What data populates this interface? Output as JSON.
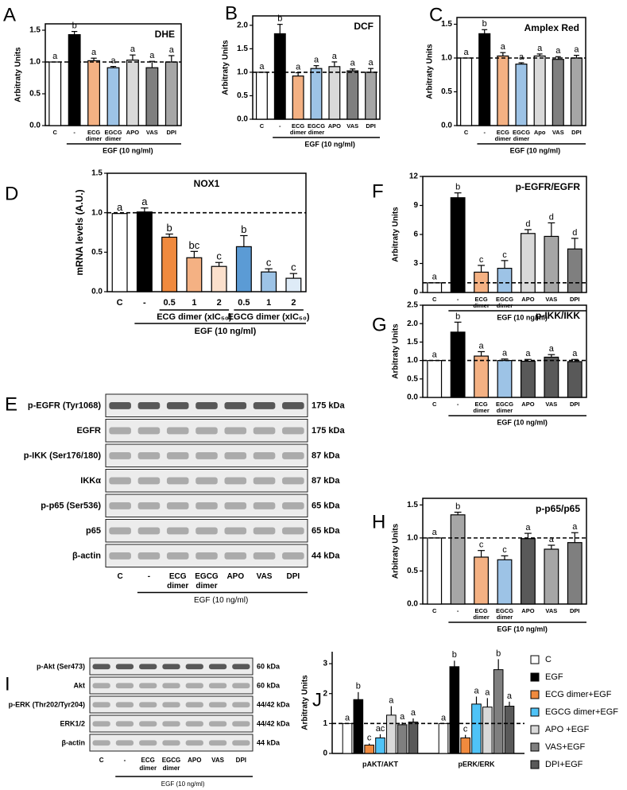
{
  "chart_data": [
    {
      "type": "bar",
      "panel": "A",
      "title": "DHE",
      "ylabel": "Arbitraty Units",
      "categories": [
        [
          "C"
        ],
        [
          "-"
        ],
        [
          "ECG",
          "dimer"
        ],
        [
          "EGCG",
          "dimer"
        ],
        [
          "APO"
        ],
        [
          "VAS"
        ],
        [
          "DPI"
        ]
      ],
      "values": [
        1.0,
        1.43,
        1.02,
        0.91,
        1.03,
        0.91,
        1.0
      ],
      "errors": [
        0,
        0.05,
        0.04,
        0.02,
        0.08,
        0.1,
        0.1
      ],
      "letters": [
        "a",
        "b",
        "a",
        "a",
        "a",
        "a",
        "a"
      ],
      "colors": [
        "#ffffff",
        "#000000",
        "#f4b183",
        "#9dc3e6",
        "#d9d9d9",
        "#7f7f7f",
        "#a6a6a6"
      ],
      "ylim": [
        0,
        1.6
      ],
      "yticks": [
        {
          "value": 0,
          "label": "0.0"
        },
        0.5,
        {
          "value": 1,
          "label": "1.0"
        },
        1.5
      ],
      "refline": 1,
      "group_label": "EGF (10 ng/ml)"
    },
    {
      "type": "bar",
      "panel": "B",
      "title": "DCF",
      "ylabel": "Arbitraty Units",
      "categories": [
        [
          "C"
        ],
        [
          "-"
        ],
        [
          "ECG",
          "dimer"
        ],
        [
          "EGCG",
          "dimer"
        ],
        [
          "APO"
        ],
        [
          "VAS"
        ],
        [
          "DPI"
        ]
      ],
      "values": [
        1.0,
        1.82,
        0.92,
        1.08,
        1.12,
        1.03,
        1.0
      ],
      "errors": [
        0,
        0.2,
        0.07,
        0.06,
        0.1,
        0.04,
        0.08
      ],
      "letters": [
        "a",
        "b",
        "a",
        "a",
        "a",
        "a",
        "a"
      ],
      "colors": [
        "#ffffff",
        "#000000",
        "#f4b183",
        "#9dc3e6",
        "#d9d9d9",
        "#7f7f7f",
        "#a6a6a6"
      ],
      "ylim": [
        0,
        2.2
      ],
      "yticks": [
        {
          "value": 0,
          "label": "0.0"
        },
        0.5,
        {
          "value": 1,
          "label": "1.0"
        },
        1.5,
        {
          "value": 2,
          "label": "2.0"
        }
      ],
      "refline": 1,
      "group_label": "EGF (10 ng/ml)"
    },
    {
      "type": "bar",
      "panel": "C",
      "title": "Amplex Red",
      "ylabel": "Arbitraty Units",
      "categories": [
        [
          "C"
        ],
        [
          "-"
        ],
        [
          "ECG",
          "dimer"
        ],
        [
          "EGCG",
          "dimer"
        ],
        [
          "Apo"
        ],
        [
          "VAS"
        ],
        [
          "DPI"
        ]
      ],
      "values": [
        1.0,
        1.36,
        1.03,
        0.91,
        1.03,
        0.98,
        1.0
      ],
      "errors": [
        0,
        0.06,
        0.05,
        0.02,
        0.03,
        0.04,
        0.04
      ],
      "letters": [
        "a",
        "b",
        "a",
        "a",
        "a",
        "a",
        "a"
      ],
      "colors": [
        "#ffffff",
        "#000000",
        "#f4b183",
        "#9dc3e6",
        "#d9d9d9",
        "#7f7f7f",
        "#a6a6a6"
      ],
      "ylim": [
        0,
        1.6
      ],
      "yticks": [
        {
          "value": 0,
          "label": "0.0"
        },
        0.5,
        {
          "value": 1,
          "label": "1.0"
        },
        1.5
      ],
      "refline": 1,
      "group_label": "EGF (10 ng/ml)"
    },
    {
      "type": "bar",
      "panel": "D",
      "title": "NOX1",
      "ylabel": "mRNA levels (A.U.)",
      "categories": [
        [
          "C"
        ],
        [
          "-"
        ],
        [
          "0.5"
        ],
        [
          "1"
        ],
        [
          "2"
        ],
        [
          "0.5"
        ],
        [
          "1"
        ],
        [
          "2"
        ]
      ],
      "values": [
        0.99,
        1.01,
        0.69,
        0.43,
        0.32,
        0.57,
        0.25,
        0.17
      ],
      "errors": [
        0,
        0.05,
        0.04,
        0.08,
        0.05,
        0.14,
        0.04,
        0.06
      ],
      "letters": [
        "a",
        "a",
        "b",
        "bc",
        "c",
        "b",
        "c",
        "c"
      ],
      "colors": [
        "#ffffff",
        "#000000",
        "#f08a3e",
        "#f4b183",
        "#fbe0cc",
        "#5b9bd5",
        "#9dc3e6",
        "#deebf7"
      ],
      "ylim": [
        0,
        1.5
      ],
      "yticks": [
        {
          "value": 0,
          "label": "0.0"
        },
        0.5,
        {
          "value": 1,
          "label": "1.0"
        },
        1.5
      ],
      "refline": 1,
      "subgroup_labels": [
        "ECG dimer (xIC₅₀)",
        "EGCG dimer (xIC₅₀)"
      ],
      "group_label": "EGF (10 ng/ml)"
    },
    {
      "type": "bar",
      "panel": "F",
      "title": "p-EGFR/EGFR",
      "ylabel": "Arbitraty Units",
      "categories": [
        [
          "C"
        ],
        [
          "-"
        ],
        [
          "ECG",
          "dimer"
        ],
        [
          "EGCG",
          "dimer"
        ],
        [
          "APO"
        ],
        [
          "VAS"
        ],
        [
          "DPI"
        ]
      ],
      "values": [
        1.0,
        9.8,
        2.1,
        2.5,
        6.1,
        5.8,
        4.5
      ],
      "errors": [
        0,
        0.5,
        0.7,
        0.8,
        0.4,
        1.4,
        1.1
      ],
      "letters": [
        "a",
        "b",
        "c",
        "c",
        "d",
        "d",
        "d"
      ],
      "colors": [
        "#ffffff",
        "#000000",
        "#f4b183",
        "#9dc3e6",
        "#d9d9d9",
        "#a6a6a6",
        "#7f7f7f"
      ],
      "ylim": [
        0,
        12
      ],
      "yticks": [
        0,
        3,
        6,
        9,
        12
      ],
      "refline": 1,
      "group_label": "EGF (10 ng/ml)"
    },
    {
      "type": "bar",
      "panel": "G",
      "title": "p-IKK/IKK",
      "ylabel": "Arbitraty Units",
      "categories": [
        [
          "C"
        ],
        [
          "-"
        ],
        [
          "ECG",
          "dimer"
        ],
        [
          "EGCG",
          "dimer"
        ],
        [
          "APO"
        ],
        [
          "VAS"
        ],
        [
          "DPI"
        ]
      ],
      "values": [
        1.0,
        1.77,
        1.12,
        1.0,
        0.98,
        1.09,
        0.97
      ],
      "errors": [
        0,
        0.27,
        0.12,
        0.04,
        0.05,
        0.07,
        0.06
      ],
      "letters": [
        "a",
        "b",
        "a",
        "a",
        "a",
        "a",
        "a"
      ],
      "colors": [
        "#ffffff",
        "#000000",
        "#f4b183",
        "#9dc3e6",
        "#595959",
        "#595959",
        "#595959"
      ],
      "ylim": [
        0,
        2.5
      ],
      "yticks": [
        {
          "value": 0,
          "label": "0.0"
        },
        0.5,
        {
          "value": 1,
          "label": "1.0"
        },
        1.5,
        {
          "value": 2,
          "label": "2.0"
        },
        2.5
      ],
      "refline": 1,
      "group_label": "EGF (10 ng/ml)"
    },
    {
      "type": "bar",
      "panel": "H",
      "title": "p-p65/p65",
      "ylabel": "Arbitraty Units",
      "categories": [
        [
          "C"
        ],
        [
          "-"
        ],
        [
          "ECG",
          "dimer"
        ],
        [
          "EGCG",
          "dimer"
        ],
        [
          "APO"
        ],
        [
          "VAS"
        ],
        [
          "DPI"
        ]
      ],
      "values": [
        1.0,
        1.35,
        0.71,
        0.67,
        0.99,
        0.83,
        0.93
      ],
      "errors": [
        0,
        0.04,
        0.1,
        0.06,
        0.08,
        0.06,
        0.15
      ],
      "letters": [
        "a",
        "b",
        "c",
        "c",
        "a",
        "a",
        "a"
      ],
      "colors": [
        "#ffffff",
        "#a6a6a6",
        "#f4b183",
        "#9dc3e6",
        "#595959",
        "#a6a6a6",
        "#7f7f7f"
      ],
      "ylim": [
        0,
        1.6
      ],
      "yticks": [
        {
          "value": 0,
          "label": "0.0"
        },
        0.5,
        {
          "value": 1,
          "label": "1.0"
        },
        1.5
      ],
      "refline": 1,
      "group_label": "EGF (10 ng/ml)"
    },
    {
      "type": "grouped_bar",
      "panel": "J",
      "ylabel": "Arbitraty Units",
      "categories": [
        "pAKT/AKT",
        "pERK/ERK"
      ],
      "series": [
        {
          "name": "C",
          "color": "#ffffff",
          "values": [
            1.0,
            1.0
          ],
          "errors": [
            0,
            0
          ],
          "letters": [
            "a",
            "a"
          ]
        },
        {
          "name": "EGF",
          "color": "#000000",
          "values": [
            1.8,
            2.9
          ],
          "errors": [
            0.25,
            0.2
          ],
          "letters": [
            "b",
            "b"
          ]
        },
        {
          "name": "ECG dimer+EGF",
          "color": "#f08a3e",
          "values": [
            0.28,
            0.52
          ],
          "errors": [
            0.05,
            0.1
          ],
          "letters": [
            "c",
            "c"
          ]
        },
        {
          "name": "EGCG dimer+EGF",
          "color": "#4fc3f7",
          "values": [
            0.52,
            1.65
          ],
          "errors": [
            0.12,
            0.25
          ],
          "letters": [
            "ac",
            "a"
          ]
        },
        {
          "name": "APO +EGF",
          "color": "#d9d9d9",
          "values": [
            1.28,
            1.55
          ],
          "errors": [
            0.3,
            0.3
          ],
          "letters": [
            "a",
            "a"
          ]
        },
        {
          "name": "VAS+EGF",
          "color": "#7f7f7f",
          "values": [
            0.96,
            2.8
          ],
          "errors": [
            0.08,
            0.35
          ],
          "letters": [
            "a",
            "b"
          ]
        },
        {
          "name": "DPI+EGF",
          "color": "#595959",
          "values": [
            1.05,
            1.58
          ],
          "errors": [
            0.12,
            0.15
          ],
          "letters": [
            "a",
            "a"
          ]
        }
      ],
      "ylim": [
        0,
        3.4
      ],
      "yticks": [
        0,
        1,
        2,
        3
      ],
      "refline": 1
    }
  ],
  "blots": [
    {
      "panel": "E",
      "rows": [
        {
          "label": "p-EGFR (Tyr1068)",
          "kda": "175 kDa"
        },
        {
          "label": "EGFR",
          "kda": "175 kDa"
        },
        {
          "label": "p-IKK (Ser176/180)",
          "kda": "87 kDa"
        },
        {
          "label": "IKKα",
          "kda": "87 kDa"
        },
        {
          "label": "p-p65 (Ser536)",
          "kda": "65 kDa"
        },
        {
          "label": "p65",
          "kda": "65 kDa"
        },
        {
          "label": "β-actin",
          "kda": "44 kDa"
        }
      ],
      "lanes": [
        [
          "C"
        ],
        [
          "-"
        ],
        [
          "ECG",
          "dimer"
        ],
        [
          "EGCG",
          "dimer"
        ],
        [
          "APO"
        ],
        [
          "VAS"
        ],
        [
          "DPI"
        ]
      ],
      "group_label": "EGF (10 ng/ml)"
    },
    {
      "panel": "I",
      "rows": [
        {
          "label": "p-Akt (Ser473)",
          "kda": "60 kDa"
        },
        {
          "label": "Akt",
          "kda": "60 kDa"
        },
        {
          "label": "p-ERK (Thr202/Tyr204)",
          "kda": "44/42 kDa"
        },
        {
          "label": "ERK1/2",
          "kda": "44/42 kDa"
        },
        {
          "label": "β-actin",
          "kda": "44 kDa"
        }
      ],
      "lanes": [
        [
          "C"
        ],
        [
          "-"
        ],
        [
          "ECG",
          "dimer"
        ],
        [
          "EGCG",
          "dimer"
        ],
        [
          "APO"
        ],
        [
          "VAS"
        ],
        [
          "DPI"
        ]
      ],
      "group_label": "EGF (10 ng/ml)"
    }
  ]
}
